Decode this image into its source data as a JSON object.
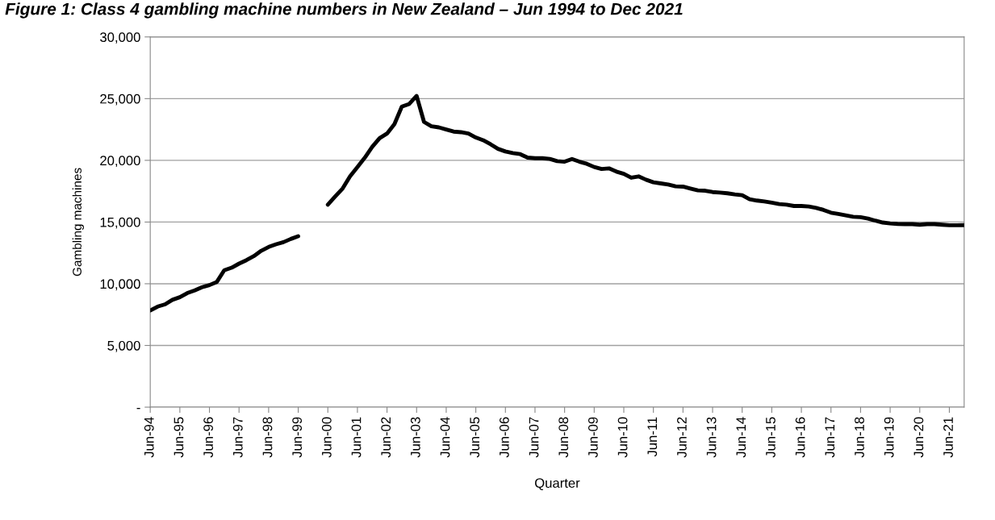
{
  "chart_data": {
    "type": "line",
    "title": "Figure 1: Class 4 gambling machine numbers in New Zealand – Jun 1994 to Dec 2021",
    "xlabel": "Quarter",
    "ylabel": "Gambling machines",
    "categories": [
      "Jun-94",
      null,
      null,
      null,
      "Jun-95",
      null,
      null,
      null,
      "Jun-96",
      null,
      null,
      null,
      "Jun-97",
      null,
      null,
      null,
      "Jun-98",
      null,
      null,
      null,
      "Jun-99",
      null,
      null,
      null,
      "Jun-00",
      null,
      null,
      null,
      "Jun-01",
      null,
      null,
      null,
      "Jun-02",
      null,
      null,
      null,
      "Jun-03",
      null,
      null,
      null,
      "Jun-04",
      null,
      null,
      null,
      "Jun-05",
      null,
      null,
      null,
      "Jun-06",
      null,
      null,
      null,
      "Jun-07",
      null,
      null,
      null,
      "Jun-08",
      null,
      null,
      null,
      "Jun-09",
      null,
      null,
      null,
      "Jun-10",
      null,
      null,
      null,
      "Jun-11",
      null,
      null,
      null,
      "Jun-12",
      null,
      null,
      null,
      "Jun-13",
      null,
      null,
      null,
      "Jun-14",
      null,
      null,
      null,
      "Jun-15",
      null,
      null,
      null,
      "Jun-16",
      null,
      null,
      null,
      "Jun-17",
      null,
      null,
      null,
      "Jun-18",
      null,
      null,
      null,
      "Jun-19",
      null,
      null,
      null,
      "Jun-20",
      null,
      null,
      null,
      "Jun-21",
      null,
      null
    ],
    "series": [
      {
        "color": "#000000",
        "values": [
          7830,
          8150,
          8330,
          8700,
          8910,
          9240,
          9460,
          9720,
          9890,
          10150,
          11090,
          11300,
          11630,
          11910,
          12240,
          12670,
          12980,
          13200,
          13370,
          13630,
          13850,
          null,
          null,
          null,
          16410,
          17070,
          17720,
          18700,
          19460,
          20220,
          21090,
          21800,
          22170,
          22930,
          24350,
          24570,
          25220,
          23110,
          22760,
          22670,
          22500,
          22330,
          22280,
          22170,
          21850,
          21630,
          21300,
          20930,
          20720,
          20590,
          20500,
          20220,
          20170,
          20170,
          20110,
          19930,
          19890,
          20110,
          19890,
          19720,
          19460,
          19300,
          19350,
          19090,
          18910,
          18590,
          18700,
          18430,
          18220,
          18130,
          18040,
          17890,
          17870,
          17720,
          17570,
          17540,
          17430,
          17390,
          17330,
          17240,
          17170,
          16850,
          16740,
          16670,
          16570,
          16460,
          16410,
          16300,
          16300,
          16260,
          16150,
          15980,
          15760,
          15650,
          15540,
          15430,
          15390,
          15280,
          15110,
          14960,
          14890,
          14850,
          14830,
          14830,
          14780,
          14830,
          14830,
          14780,
          14740,
          14740,
          14750
        ]
      }
    ],
    "ylim": [
      0,
      30000
    ],
    "yticks": [
      {
        "value": 0,
        "label": "-"
      },
      {
        "value": 5000,
        "label": "5,000"
      },
      {
        "value": 10000,
        "label": "10,000"
      },
      {
        "value": 15000,
        "label": "15,000"
      },
      {
        "value": 20000,
        "label": "20,000"
      },
      {
        "value": 25000,
        "label": "25,000"
      },
      {
        "value": 30000,
        "label": "30,000"
      }
    ],
    "grid": "y",
    "marker": "none",
    "line_style": "solid"
  }
}
